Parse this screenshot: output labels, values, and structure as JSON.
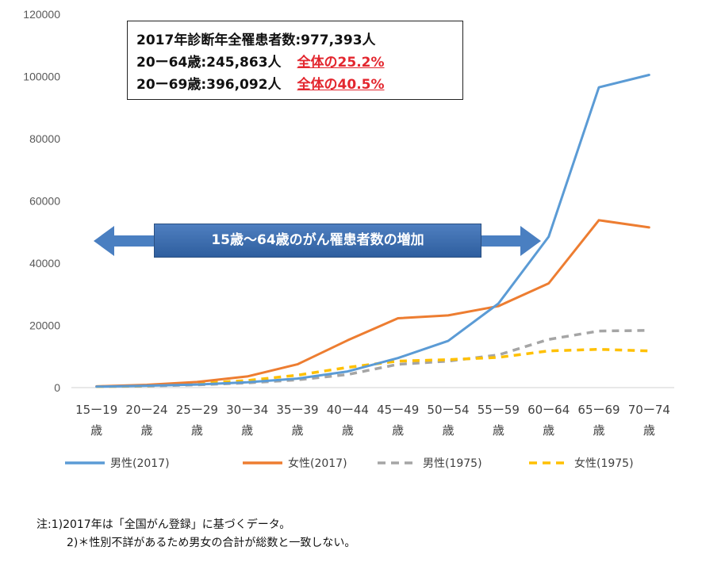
{
  "chart_data": {
    "type": "line",
    "ylim": [
      0,
      120000
    ],
    "yticks": [
      0,
      20000,
      40000,
      60000,
      80000,
      100000,
      120000
    ],
    "ytick_labels": [
      "0",
      "20000",
      "40000",
      "60000",
      "80000",
      "100000",
      "120000"
    ],
    "categories": [
      {
        "line1": "15ー19",
        "line2": "歳"
      },
      {
        "line1": "20ー24",
        "line2": "歳"
      },
      {
        "line1": "25ー29",
        "line2": "歳"
      },
      {
        "line1": "30ー34",
        "line2": "歳"
      },
      {
        "line1": "35ー39",
        "line2": "歳"
      },
      {
        "line1": "40ー44",
        "line2": "歳"
      },
      {
        "line1": "45ー49",
        "line2": "歳"
      },
      {
        "line1": "50ー54",
        "line2": "歳"
      },
      {
        "line1": "55ー59",
        "line2": "歳"
      },
      {
        "line1": "60ー64",
        "line2": "歳"
      },
      {
        "line1": "65ー69",
        "line2": "歳"
      },
      {
        "line1": "70ー74",
        "line2": "歳"
      }
    ],
    "series": [
      {
        "name": "男性(2017)",
        "color": "#5b9bd5",
        "dashed": false,
        "values": [
          300,
          600,
          1000,
          1700,
          2900,
          5200,
          9500,
          15000,
          27000,
          48500,
          96500,
          100500
        ]
      },
      {
        "name": "女性(2017)",
        "color": "#ed7d31",
        "dashed": false,
        "values": [
          400,
          900,
          1800,
          3600,
          7500,
          15200,
          22300,
          23200,
          26200,
          33500,
          53800,
          51500
        ]
      },
      {
        "name": "男性(1975)",
        "color": "#a5a5a5",
        "dashed": true,
        "values": [
          300,
          500,
          900,
          1500,
          2500,
          4200,
          7500,
          8500,
          10500,
          15500,
          18200,
          18400
        ]
      },
      {
        "name": "女性(1975)",
        "color": "#ffc000",
        "dashed": true,
        "values": [
          300,
          600,
          1300,
          2300,
          4000,
          6500,
          8500,
          9000,
          9700,
          11800,
          12300,
          11800
        ]
      }
    ],
    "legend_position": "bottom",
    "grid": false
  },
  "info_box": {
    "line1": "2017年診断年全罹患者数:977,393人",
    "line2_main": "20ー64歳:245,863人",
    "line2_red": "全体の25.2%",
    "line3_main": "20ー69歳:396,092人",
    "line3_red": "全体の40.5%"
  },
  "banner": {
    "label": "15歳〜64歳のがん罹患者数の増加",
    "color": "#2e5e9e"
  },
  "notes": {
    "line1": "注:1)2017年は「全国がん登録」に基づくデータ。",
    "line2": "2)＊性別不詳があるため男女の合計が総数と一致しない。"
  }
}
